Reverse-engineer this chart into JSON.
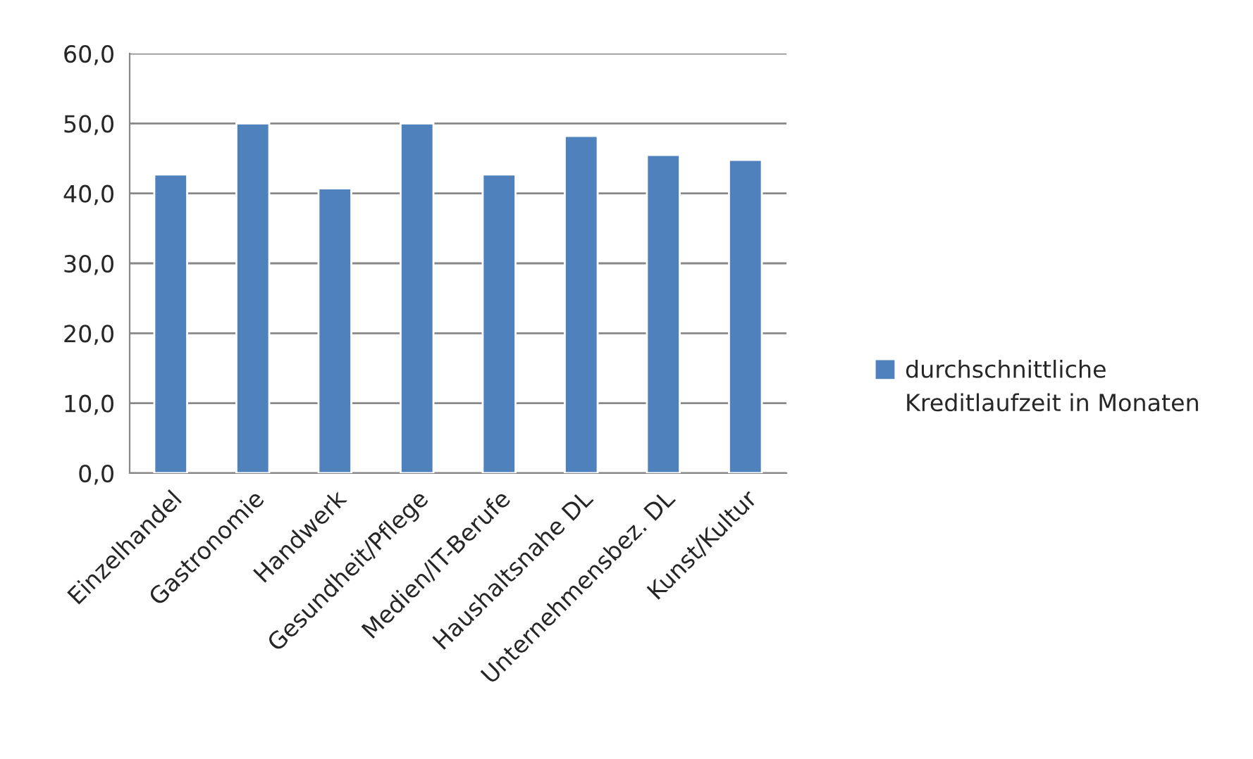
{
  "chart_data": {
    "type": "bar",
    "categories": [
      "Einzelhandel",
      "Gastronomie",
      "Handwerk",
      "Gesundheit/Pflege",
      "Medien/IT-Berufe",
      "Haushaltsnahe DL",
      "Unternehmensbez. DL",
      "Kunst/Kultur"
    ],
    "series": [
      {
        "name": "durchschnittliche Kreditlaufzeit in Monaten",
        "color": "#4f81bd",
        "values": [
          42.7,
          50.0,
          40.7,
          50.0,
          42.7,
          48.2,
          45.5,
          44.8
        ]
      }
    ],
    "ylim": [
      0,
      60
    ],
    "yticks": [
      {
        "value": 0,
        "label": "0,0"
      },
      {
        "value": 10,
        "label": "10,0"
      },
      {
        "value": 20,
        "label": "20,0"
      },
      {
        "value": 30,
        "label": "30,0"
      },
      {
        "value": 40,
        "label": "40,0"
      },
      {
        "value": 50,
        "label": "50,0"
      },
      {
        "value": 60,
        "label": "60,0"
      }
    ],
    "grid": "y",
    "legend": "right"
  }
}
